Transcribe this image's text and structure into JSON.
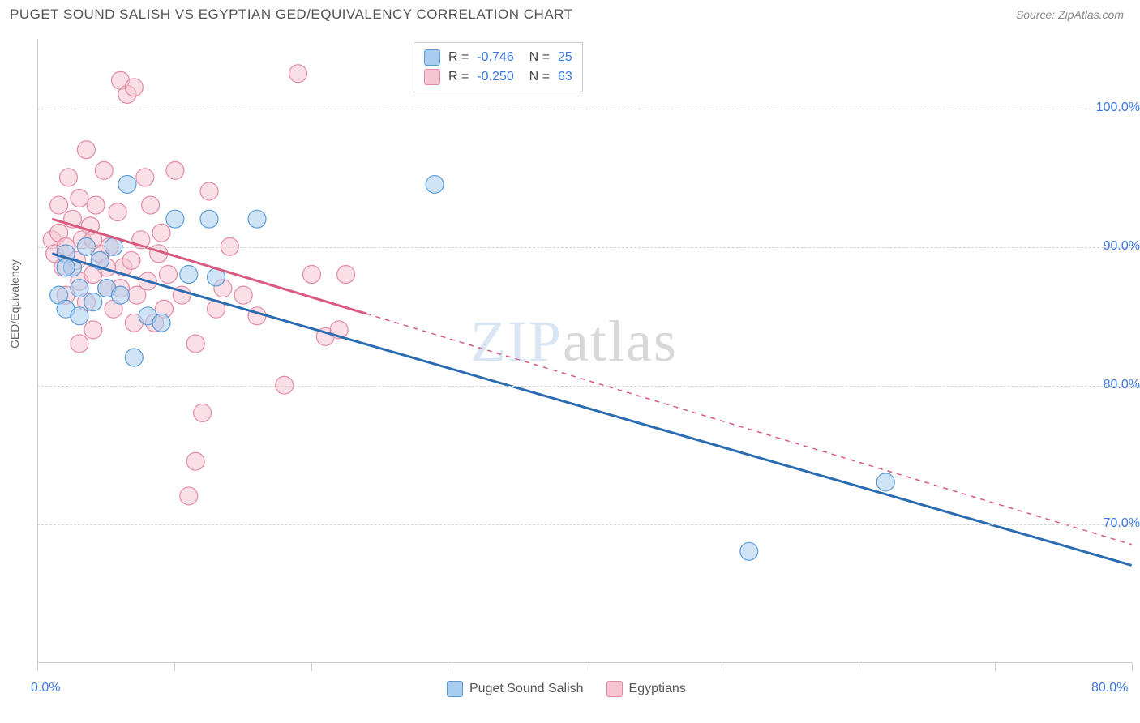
{
  "header": {
    "title": "PUGET SOUND SALISH VS EGYPTIAN GED/EQUIVALENCY CORRELATION CHART",
    "source": "Source: ZipAtlas.com"
  },
  "watermark": {
    "part1": "ZIP",
    "part2": "atlas"
  },
  "chart": {
    "type": "scatter",
    "ylabel": "GED/Equivalency",
    "background_color": "#ffffff",
    "grid_color": "#d5d5d5",
    "axis_color": "#cccccc",
    "xlim": [
      0,
      80
    ],
    "ylim": [
      60,
      105
    ],
    "x_ticks": [
      0,
      10,
      20,
      30,
      40,
      50,
      60,
      70,
      80
    ],
    "x_tick_labels": {
      "min": "0.0%",
      "max": "80.0%"
    },
    "y_ticks": [
      70,
      80,
      90,
      100
    ],
    "y_tick_labels": [
      "70.0%",
      "80.0%",
      "90.0%",
      "100.0%"
    ],
    "y_tick_color": "#3b78e7",
    "x_label_color": "#3b78e7",
    "marker_radius": 11,
    "marker_opacity": 0.55,
    "line_width": 3,
    "series": [
      {
        "name": "Puget Sound Salish",
        "color_fill": "#a9cdf1",
        "color_stroke": "#5b9bd5",
        "line_color": "#2b6cb0",
        "R": "-0.746",
        "N": "25",
        "points": [
          [
            2.0,
            89.5
          ],
          [
            2.5,
            88.5
          ],
          [
            3.0,
            87.0
          ],
          [
            3.5,
            90.0
          ],
          [
            1.5,
            86.5
          ],
          [
            2.0,
            85.5
          ],
          [
            4.0,
            86.0
          ],
          [
            5.0,
            87.0
          ],
          [
            5.5,
            90.0
          ],
          [
            6.0,
            86.5
          ],
          [
            6.5,
            94.5
          ],
          [
            8.0,
            85.0
          ],
          [
            10.0,
            92.0
          ],
          [
            11.0,
            88.0
          ],
          [
            12.5,
            92.0
          ],
          [
            13.0,
            87.8
          ],
          [
            16.0,
            92.0
          ],
          [
            9.0,
            84.5
          ],
          [
            7.0,
            82.0
          ],
          [
            4.5,
            89.0
          ],
          [
            3.0,
            85.0
          ],
          [
            2.0,
            88.5
          ],
          [
            29.0,
            94.5
          ],
          [
            52.0,
            68.0
          ],
          [
            62.0,
            73.0
          ]
        ],
        "trend": {
          "x1": 1,
          "y1": 89.5,
          "x2": 80,
          "y2": 67.0,
          "solid_until_x": 80
        }
      },
      {
        "name": "Egyptians",
        "color_fill": "#f6c5d2",
        "color_stroke": "#e38aa5",
        "line_color": "#d85a7e",
        "R": "-0.250",
        "N": "63",
        "points": [
          [
            1.0,
            90.5
          ],
          [
            1.2,
            89.5
          ],
          [
            1.5,
            91.0
          ],
          [
            1.5,
            93.0
          ],
          [
            1.8,
            88.5
          ],
          [
            2.0,
            90.0
          ],
          [
            2.0,
            86.5
          ],
          [
            2.2,
            95.0
          ],
          [
            2.5,
            92.0
          ],
          [
            2.8,
            89.0
          ],
          [
            3.0,
            87.5
          ],
          [
            3.0,
            93.5
          ],
          [
            3.2,
            90.5
          ],
          [
            3.5,
            86.0
          ],
          [
            3.5,
            97.0
          ],
          [
            3.8,
            91.5
          ],
          [
            4.0,
            88.0
          ],
          [
            4.0,
            84.0
          ],
          [
            4.2,
            93.0
          ],
          [
            4.5,
            89.5
          ],
          [
            4.8,
            95.5
          ],
          [
            5.0,
            87.0
          ],
          [
            5.2,
            90.0
          ],
          [
            5.5,
            85.5
          ],
          [
            5.8,
            92.5
          ],
          [
            6.0,
            102.0
          ],
          [
            6.2,
            88.5
          ],
          [
            6.5,
            101.0
          ],
          [
            6.8,
            89.0
          ],
          [
            7.0,
            101.5
          ],
          [
            7.2,
            86.5
          ],
          [
            7.5,
            90.5
          ],
          [
            7.8,
            95.0
          ],
          [
            8.0,
            87.5
          ],
          [
            8.2,
            93.0
          ],
          [
            8.5,
            84.5
          ],
          [
            8.8,
            89.5
          ],
          [
            9.0,
            91.0
          ],
          [
            9.2,
            85.5
          ],
          [
            9.5,
            88.0
          ],
          [
            10.0,
            95.5
          ],
          [
            10.5,
            86.5
          ],
          [
            11.0,
            72.0
          ],
          [
            11.5,
            74.5
          ],
          [
            12.0,
            78.0
          ],
          [
            12.5,
            94.0
          ],
          [
            13.0,
            85.5
          ],
          [
            13.5,
            87.0
          ],
          [
            14.0,
            90.0
          ],
          [
            15.0,
            86.5
          ],
          [
            16.0,
            85.0
          ],
          [
            18.0,
            80.0
          ],
          [
            19.0,
            102.5
          ],
          [
            20.0,
            88.0
          ],
          [
            21.0,
            83.5
          ],
          [
            22.0,
            84.0
          ],
          [
            22.5,
            88.0
          ],
          [
            11.5,
            83.0
          ],
          [
            3.0,
            83.0
          ],
          [
            4.0,
            90.5
          ],
          [
            5.0,
            88.5
          ],
          [
            6.0,
            87.0
          ],
          [
            7.0,
            84.5
          ]
        ],
        "trend": {
          "x1": 1,
          "y1": 92.0,
          "x2": 80,
          "y2": 68.5,
          "solid_until_x": 24
        }
      }
    ],
    "legend_bottom_items": [
      {
        "label": "Puget Sound Salish",
        "fill": "#a9cdf1",
        "stroke": "#5b9bd5"
      },
      {
        "label": "Egyptians",
        "fill": "#f6c5d2",
        "stroke": "#e38aa5"
      }
    ]
  }
}
